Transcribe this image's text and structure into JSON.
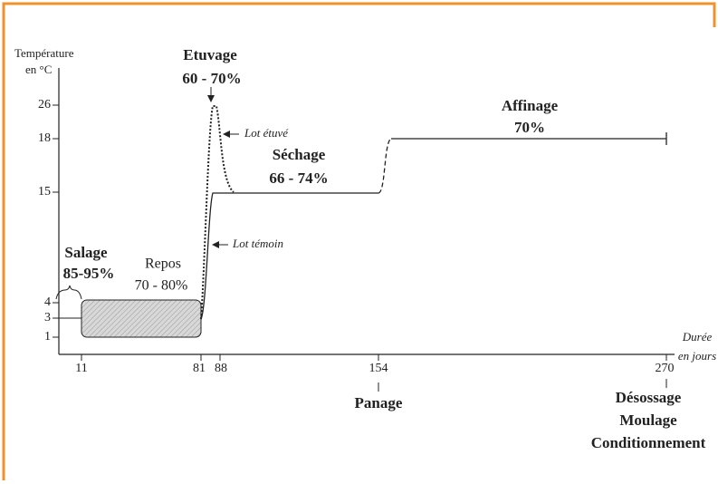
{
  "axis": {
    "y_title": [
      "Température",
      "en °C"
    ],
    "y_ticks": [
      "26",
      "18",
      "15",
      "4",
      "3",
      "1"
    ],
    "x_ticks": [
      "11",
      "81",
      "88",
      "154",
      "270"
    ],
    "x_title": [
      "Durée",
      "en jours"
    ]
  },
  "labels": {
    "etuvage": [
      "Etuvage",
      "60 - 70%"
    ],
    "lot_etuve": "Lot étuvé",
    "sechage": [
      "Séchage",
      "66 - 74%"
    ],
    "affinage": [
      "Affinage",
      "70%"
    ],
    "lot_temoin": "Lot témoin",
    "salage": [
      "Salage",
      "85-95%"
    ],
    "repos": [
      "Repos",
      "70 - 80%"
    ],
    "panage": "Panage",
    "final": [
      "Désossage",
      "Moulage",
      "Conditionnement"
    ]
  }
}
